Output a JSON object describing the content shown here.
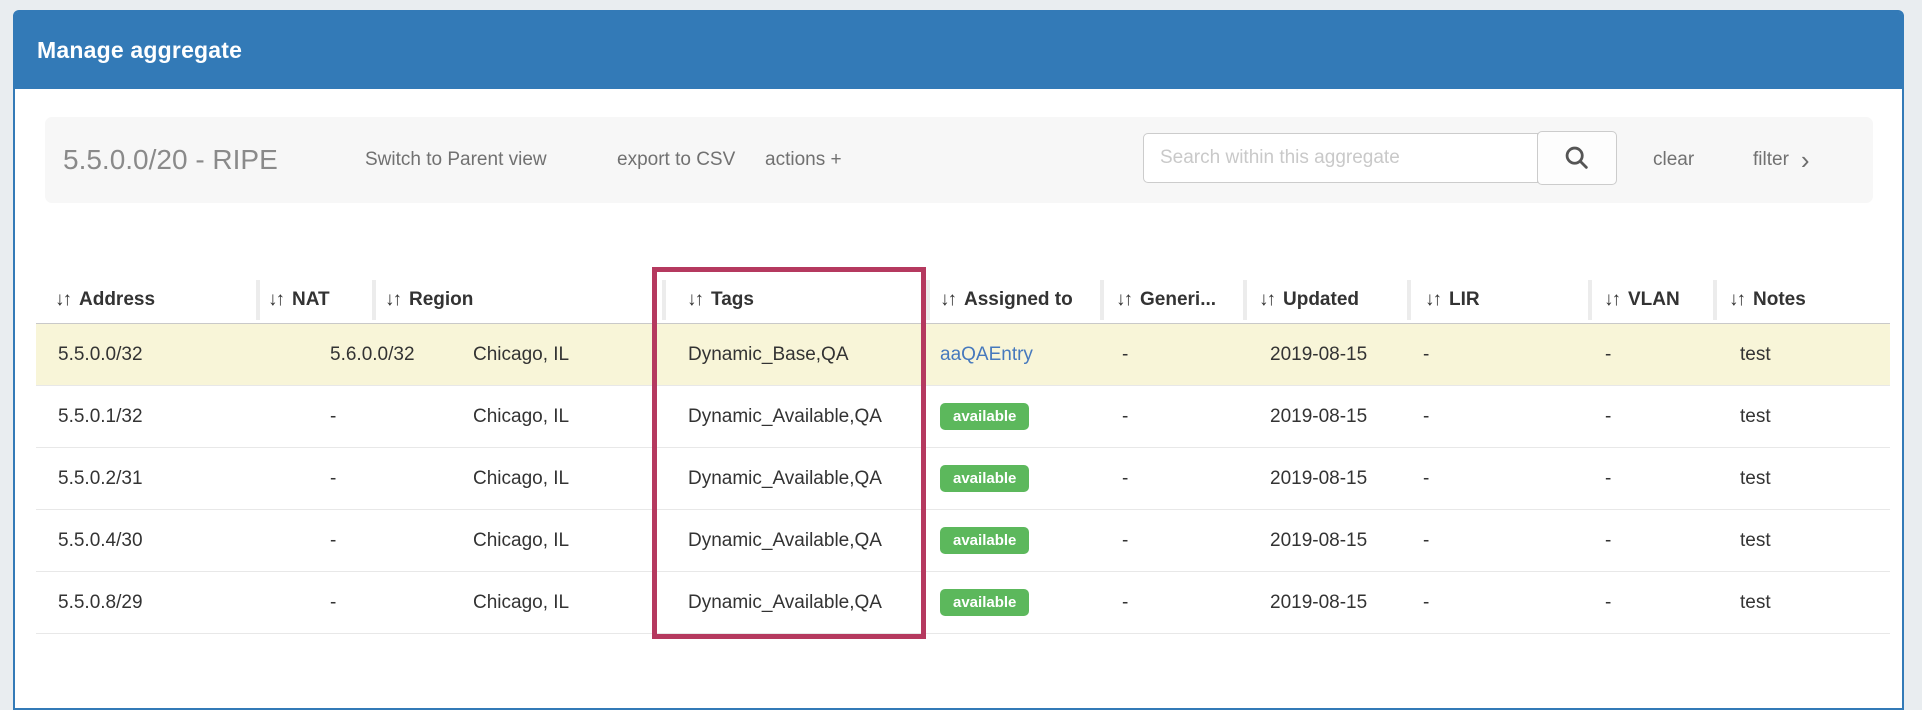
{
  "panel": {
    "title": "Manage aggregate"
  },
  "toolbar": {
    "aggregate_title": "5.5.0.0/20 - RIPE",
    "switch_parent_label": "Switch to Parent view",
    "export_csv_label": "export to CSV",
    "actions_label": "actions +",
    "search_placeholder": "Search within this aggregate",
    "search_value": "",
    "clear_label": "clear",
    "filter_label": "filter",
    "filter_chevron": "›"
  },
  "table": {
    "sort_icon": "↓↑",
    "columns": [
      {
        "id": "address",
        "label": "Address"
      },
      {
        "id": "nat",
        "label": "NAT"
      },
      {
        "id": "region",
        "label": "Region"
      },
      {
        "id": "tags",
        "label": "Tags"
      },
      {
        "id": "assigned",
        "label": "Assigned to"
      },
      {
        "id": "generic",
        "label": "Generi..."
      },
      {
        "id": "updated",
        "label": "Updated"
      },
      {
        "id": "lir",
        "label": "LIR"
      },
      {
        "id": "vlan",
        "label": "VLAN"
      },
      {
        "id": "notes",
        "label": "Notes"
      }
    ],
    "rows": [
      {
        "address": "5.5.0.0/32",
        "nat": "5.6.0.0/32",
        "region": "Chicago, IL",
        "tags": "Dynamic_Base,QA",
        "assigned": {
          "type": "link",
          "text": "aaQAEntry"
        },
        "generic": "-",
        "updated": "2019-08-15",
        "lir": "-",
        "vlan": "-",
        "notes": "test",
        "highlighted": true
      },
      {
        "address": "5.5.0.1/32",
        "nat": "-",
        "region": "Chicago, IL",
        "tags": "Dynamic_Available,QA",
        "assigned": {
          "type": "badge",
          "text": "available"
        },
        "generic": "-",
        "updated": "2019-08-15",
        "lir": "-",
        "vlan": "-",
        "notes": "test",
        "highlighted": false
      },
      {
        "address": "5.5.0.2/31",
        "nat": "-",
        "region": "Chicago, IL",
        "tags": "Dynamic_Available,QA",
        "assigned": {
          "type": "badge",
          "text": "available"
        },
        "generic": "-",
        "updated": "2019-08-15",
        "lir": "-",
        "vlan": "-",
        "notes": "test",
        "highlighted": false
      },
      {
        "address": "5.5.0.4/30",
        "nat": "-",
        "region": "Chicago, IL",
        "tags": "Dynamic_Available,QA",
        "assigned": {
          "type": "badge",
          "text": "available"
        },
        "generic": "-",
        "updated": "2019-08-15",
        "lir": "-",
        "vlan": "-",
        "notes": "test",
        "highlighted": false
      },
      {
        "address": "5.5.0.8/29",
        "nat": "-",
        "region": "Chicago, IL",
        "tags": "Dynamic_Available,QA",
        "assigned": {
          "type": "badge",
          "text": "available"
        },
        "generic": "-",
        "updated": "2019-08-15",
        "lir": "-",
        "vlan": "-",
        "notes": "test",
        "highlighted": false
      }
    ]
  },
  "annotation": {
    "description": "highlight box around Tags column",
    "target_column": "Tags"
  },
  "colors": {
    "header_blue": "#337ab7",
    "page_bg": "#e9edf0",
    "toolbar_bg": "#f7f7f7",
    "highlight_row": "#f8f5d8",
    "badge_green": "#5cb85c",
    "link_blue": "#4679bd",
    "annotation_pink": "#b5395f",
    "text": "#333333"
  }
}
